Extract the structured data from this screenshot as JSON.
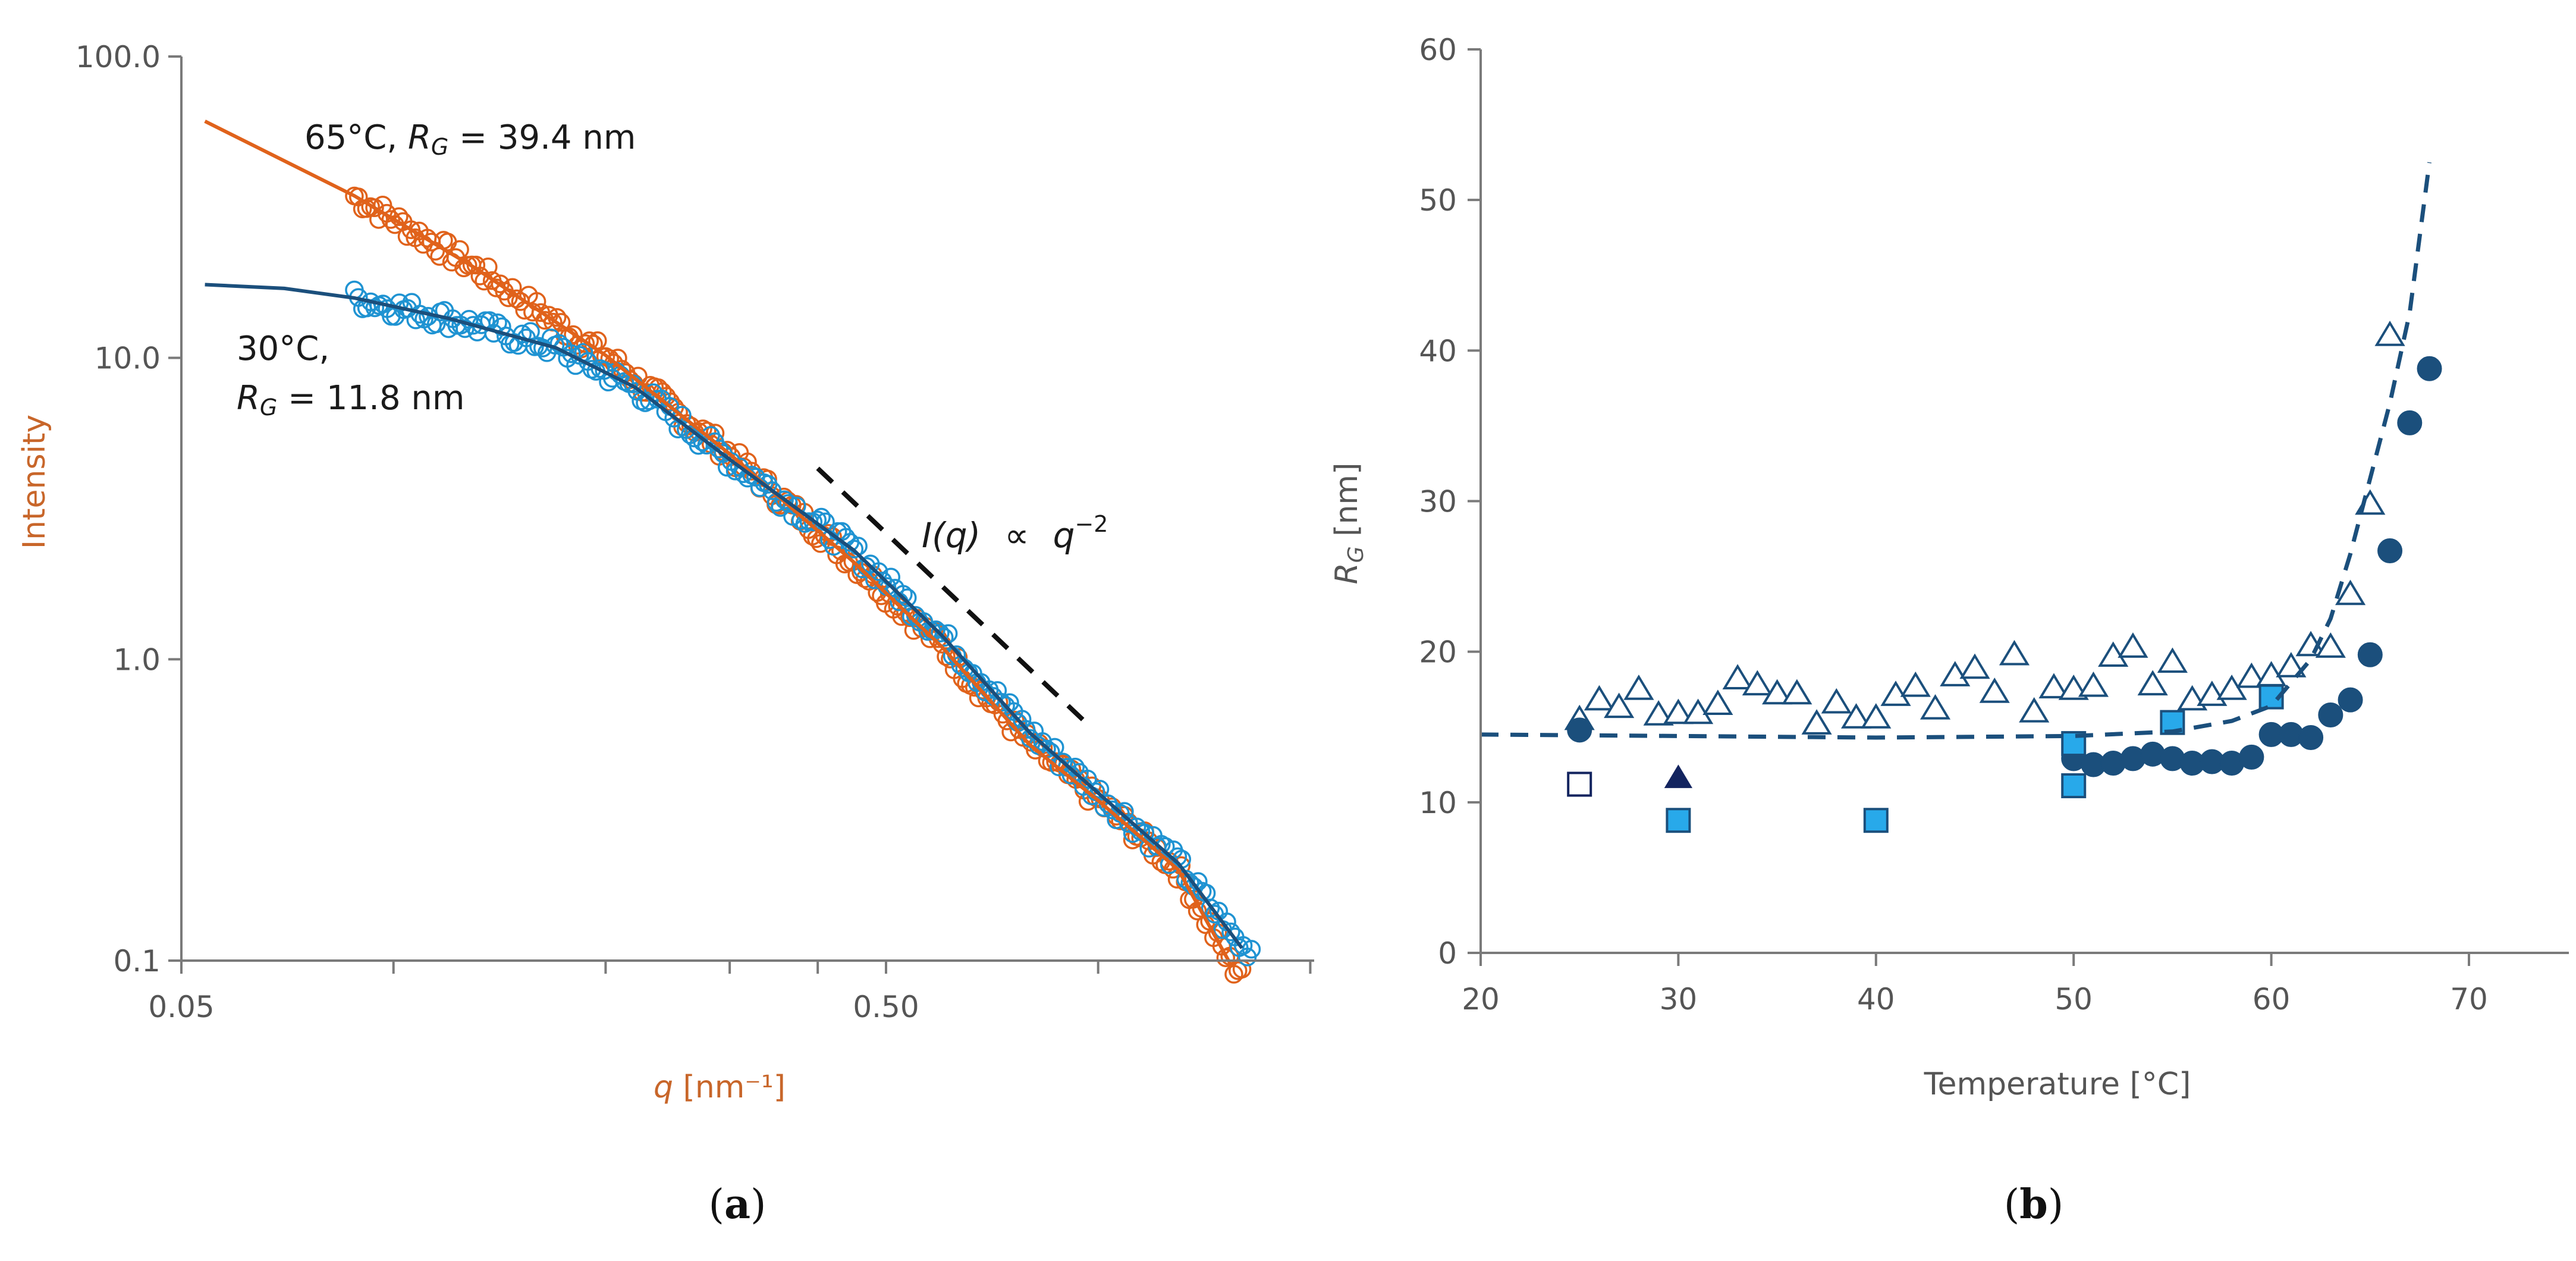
{
  "colors": {
    "orange": "#e0621b",
    "blue_light": "#1f93d2",
    "navy": "#1b4f7c",
    "dark_navy": "#13245f",
    "square_fill": "#28a9ea",
    "axis": "#7a7a7a",
    "text": "#555555",
    "dark_text": "#1a1a1a"
  },
  "chart_data": [
    {
      "id": "a",
      "panel_label": "(a)",
      "panel_letter": "a",
      "type": "scatter",
      "scale": "log-log",
      "xlabel_var": "q",
      "xlabel_unit": " [nm⁻¹]",
      "ylabel": "Intensity",
      "xlim": [
        0.05,
        2.0
      ],
      "ylim": [
        0.1,
        100.0
      ],
      "x_ticks": [
        0.05,
        0.5
      ],
      "x_tick_labels": [
        "0.05",
        "0.50"
      ],
      "x_minor_ticks": [
        0.1,
        0.2,
        0.3,
        0.4,
        1.0,
        2.0
      ],
      "y_ticks": [
        0.1,
        1.0,
        10.0,
        100.0
      ],
      "y_tick_labels": [
        "0.1",
        "1.0",
        "10.0",
        "100.0"
      ],
      "series": [
        {
          "name": "65°C",
          "temperature": "65°C",
          "rg_label": "R",
          "rg_sub": "G",
          "rg_value": " = 39.4 nm",
          "color": "orange",
          "data_x_range": [
            0.088,
            1.6
          ],
          "fit_x_range": [
            0.054,
            1.55
          ],
          "fit_points": [
            [
              0.054,
              61.0
            ],
            [
              0.088,
              34.5
            ],
            [
              0.13,
              20.0
            ],
            [
              0.2,
              10.2
            ],
            [
              0.3,
              4.8
            ],
            [
              0.45,
              2.1
            ],
            [
              0.6,
              1.1
            ],
            [
              0.8,
              0.52
            ],
            [
              1.0,
              0.34
            ],
            [
              1.3,
              0.2
            ],
            [
              1.55,
              0.095
            ]
          ]
        },
        {
          "name": "30°C",
          "temperature": "30°C,",
          "rg_label": "R",
          "rg_sub": "G",
          "rg_value": " = 11.8 nm",
          "color": "blue_light",
          "data_x_range": [
            0.088,
            1.65
          ],
          "fit_x_range": [
            0.054,
            1.6
          ],
          "fit_points": [
            [
              0.054,
              17.5
            ],
            [
              0.07,
              17.0
            ],
            [
              0.088,
              15.8
            ],
            [
              0.12,
              13.5
            ],
            [
              0.17,
              10.8
            ],
            [
              0.22,
              8.0
            ],
            [
              0.3,
              4.6
            ],
            [
              0.45,
              2.3
            ],
            [
              0.6,
              1.2
            ],
            [
              0.8,
              0.57
            ],
            [
              1.0,
              0.36
            ],
            [
              1.3,
              0.21
            ],
            [
              1.6,
              0.11
            ]
          ]
        }
      ],
      "guide": {
        "x": [
          0.4,
          0.98
        ],
        "y": [
          4.3,
          0.59
        ],
        "label_a": "I(q)",
        "label_b": "∝",
        "label_c": "q",
        "label_exp": "−2"
      }
    },
    {
      "id": "b",
      "panel_label": "(b)",
      "panel_letter": "b",
      "type": "scatter",
      "xlabel": "Temperature [°C]",
      "ylabel_var": "R",
      "ylabel_sub": "G",
      "ylabel_unit": " [nm]",
      "xlim": [
        20,
        75
      ],
      "ylim": [
        0,
        60
      ],
      "x_ticks": [
        20,
        30,
        40,
        50,
        60,
        70
      ],
      "y_ticks": [
        0,
        10,
        20,
        30,
        40,
        50,
        60
      ],
      "series": [
        {
          "name": "open triangles",
          "marker": "triangle-open",
          "color": "navy",
          "points": [
            [
              25,
              15.5
            ],
            [
              26,
              16.8
            ],
            [
              27,
              16.3
            ],
            [
              28,
              17.5
            ],
            [
              29,
              15.8
            ],
            [
              30,
              15.9
            ],
            [
              31,
              15.9
            ],
            [
              32,
              16.5
            ],
            [
              33,
              18.2
            ],
            [
              34,
              17.8
            ],
            [
              35,
              17.2
            ],
            [
              36,
              17.2
            ],
            [
              37,
              15.2
            ],
            [
              38,
              16.6
            ],
            [
              39,
              15.6
            ],
            [
              40,
              15.6
            ],
            [
              41,
              17.1
            ],
            [
              42,
              17.7
            ],
            [
              43,
              16.2
            ],
            [
              44,
              18.4
            ],
            [
              45,
              18.9
            ],
            [
              46,
              17.3
            ],
            [
              47,
              19.8
            ],
            [
              48,
              16.0
            ],
            [
              49,
              17.6
            ],
            [
              50,
              17.5
            ],
            [
              51,
              17.7
            ],
            [
              52,
              19.7
            ],
            [
              53,
              20.3
            ],
            [
              54,
              17.8
            ],
            [
              55,
              19.3
            ],
            [
              56,
              16.8
            ],
            [
              57,
              17.1
            ],
            [
              58,
              17.5
            ],
            [
              59,
              18.3
            ],
            [
              60,
              18.4
            ],
            [
              61,
              19.0
            ],
            [
              62,
              20.4
            ],
            [
              63,
              20.3
            ],
            [
              64,
              23.8
            ],
            [
              65,
              29.8
            ],
            [
              66,
              41.0
            ]
          ]
        },
        {
          "name": "filled circles",
          "marker": "circle-filled",
          "color": "navy",
          "points": [
            [
              25,
              14.8
            ],
            [
              50,
              12.9
            ],
            [
              51,
              12.5
            ],
            [
              52,
              12.6
            ],
            [
              53,
              12.9
            ],
            [
              54,
              13.2
            ],
            [
              55,
              12.9
            ],
            [
              56,
              12.6
            ],
            [
              57,
              12.7
            ],
            [
              58,
              12.6
            ],
            [
              59,
              13.0
            ],
            [
              60,
              14.5
            ],
            [
              61,
              14.5
            ],
            [
              62,
              14.3
            ],
            [
              63,
              15.8
            ],
            [
              64,
              16.8
            ],
            [
              65,
              19.8
            ],
            [
              66,
              26.7
            ],
            [
              67,
              35.2
            ],
            [
              68,
              38.8
            ]
          ]
        },
        {
          "name": "filled squares",
          "marker": "square-filled",
          "color": "square_fill",
          "points": [
            [
              30,
              8.8
            ],
            [
              40,
              8.8
            ],
            [
              50,
              11.1
            ],
            [
              50,
              13.9
            ],
            [
              55,
              15.3
            ],
            [
              60,
              17.0
            ]
          ]
        },
        {
          "name": "open square",
          "marker": "square-open",
          "color": "dark_navy",
          "points": [
            [
              25,
              11.2
            ]
          ]
        },
        {
          "name": "filled triangle",
          "marker": "triangle-filled",
          "color": "dark_navy",
          "points": [
            [
              30,
              11.6
            ]
          ]
        },
        {
          "name": "dashed fit",
          "marker": "dashed-line",
          "color": "navy",
          "points": [
            [
              20,
              14.5
            ],
            [
              30,
              14.4
            ],
            [
              40,
              14.3
            ],
            [
              50,
              14.4
            ],
            [
              55,
              14.7
            ],
            [
              58,
              15.4
            ],
            [
              60,
              16.4
            ],
            [
              62,
              19.5
            ],
            [
              63,
              22.2
            ],
            [
              64,
              26.5
            ],
            [
              65,
              31.5
            ],
            [
              66,
              36.5
            ],
            [
              67,
              42.5
            ],
            [
              68,
              52.5
            ]
          ]
        }
      ]
    }
  ]
}
